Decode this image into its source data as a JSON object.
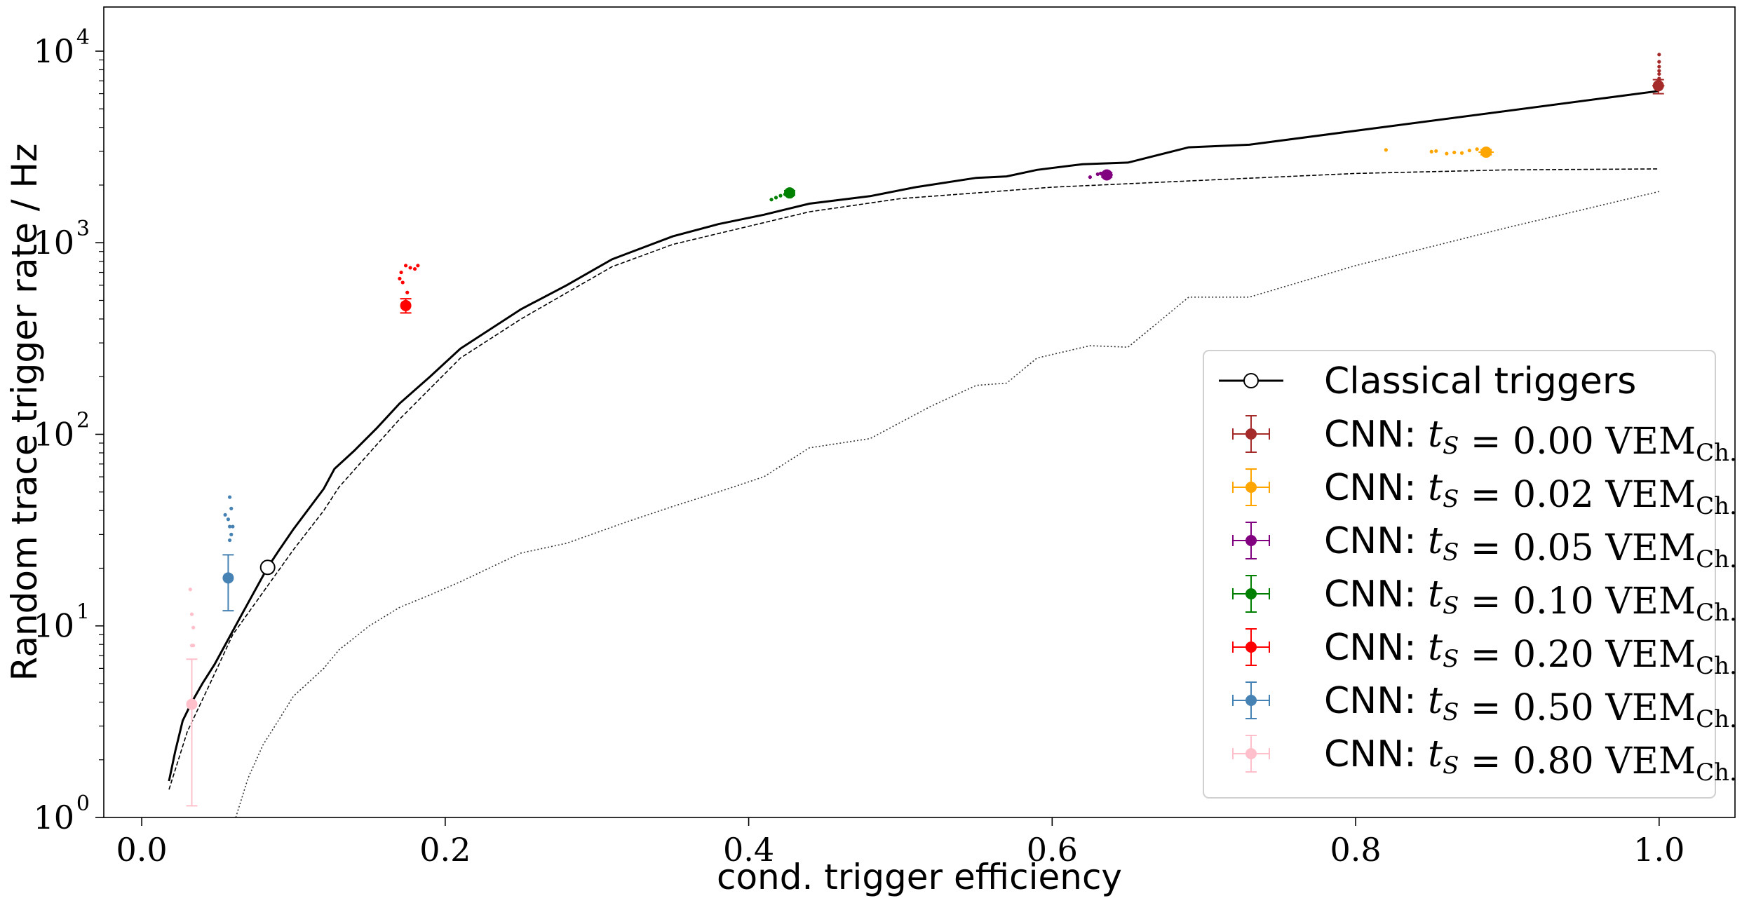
{
  "chart_data": {
    "type": "scatter",
    "xlabel": "cond. trigger efficiency",
    "ylabel": "Random trace trigger rate / Hz",
    "xlim": [
      -0.025,
      1.05
    ],
    "ylim": [
      1,
      17000
    ],
    "yscale": "log",
    "grid": false,
    "legend_position": "bottom-right",
    "x_ticks": [
      {
        "value": 0.0,
        "label": "0.0"
      },
      {
        "value": 0.2,
        "label": "0.2"
      },
      {
        "value": 0.4,
        "label": "0.4"
      },
      {
        "value": 0.6,
        "label": "0.6"
      },
      {
        "value": 0.8,
        "label": "0.8"
      },
      {
        "value": 1.0,
        "label": "1.0"
      }
    ],
    "y_ticks": [
      {
        "value": 1,
        "label": "10",
        "exp": "0"
      },
      {
        "value": 10,
        "label": "10",
        "exp": "1"
      },
      {
        "value": 100,
        "label": "10",
        "exp": "2"
      },
      {
        "value": 1000,
        "label": "10",
        "exp": "3"
      },
      {
        "value": 10000,
        "label": "10",
        "exp": "4"
      }
    ],
    "classical": {
      "name": "Classical triggers",
      "color": "#000000",
      "marker_point": {
        "x": 0.083,
        "y": 20.2
      },
      "x": [
        0.018,
        0.022,
        0.027,
        0.033,
        0.04,
        0.048,
        0.057,
        0.066,
        0.075,
        0.083,
        0.09,
        0.1,
        0.12,
        0.127,
        0.14,
        0.155,
        0.17,
        0.19,
        0.21,
        0.25,
        0.28,
        0.31,
        0.35,
        0.38,
        0.41,
        0.44,
        0.48,
        0.51,
        0.55,
        0.57,
        0.59,
        0.62,
        0.65,
        0.69,
        0.73,
        1.0
      ],
      "y": [
        1.55,
        2.2,
        3.2,
        4.0,
        5.0,
        6.3,
        8.5,
        11.5,
        15.5,
        20.2,
        24.5,
        32,
        52,
        66,
        82,
        108,
        145,
        200,
        280,
        450,
        600,
        820,
        1080,
        1250,
        1400,
        1600,
        1750,
        1950,
        2180,
        2220,
        2400,
        2570,
        2620,
        3150,
        3250,
        6200
      ],
      "dashed_x": [
        0.018,
        0.03,
        0.045,
        0.06,
        0.08,
        0.1,
        0.12,
        0.13,
        0.15,
        0.17,
        0.21,
        0.25,
        0.31,
        0.35,
        0.44,
        0.5,
        0.6,
        0.7,
        0.8,
        0.9,
        1.0
      ],
      "dashed_y": [
        1.4,
        2.8,
        5.0,
        9.0,
        15.0,
        25.0,
        40.0,
        53.0,
        80.0,
        120.0,
        250.0,
        400.0,
        750.0,
        980.0,
        1450.0,
        1700.0,
        1950.0,
        2120.0,
        2300.0,
        2400.0,
        2430.0
      ],
      "dotted_x": [
        0.062,
        0.07,
        0.08,
        0.09,
        0.1,
        0.12,
        0.13,
        0.15,
        0.17,
        0.19,
        0.21,
        0.25,
        0.28,
        0.32,
        0.35,
        0.38,
        0.41,
        0.44,
        0.48,
        0.52,
        0.55,
        0.57,
        0.59,
        0.625,
        0.65,
        0.69,
        0.73,
        0.8,
        0.9,
        1.0
      ],
      "dotted_y": [
        1.0,
        1.6,
        2.4,
        3.2,
        4.3,
        6.0,
        7.5,
        10.0,
        12.5,
        14.5,
        17.0,
        24.0,
        27.0,
        35.0,
        42.0,
        50.0,
        60.0,
        85.0,
        95.0,
        140.0,
        180.0,
        185.0,
        250.0,
        290.0,
        285.0,
        520.0,
        520.0,
        760.0,
        1200.0,
        1850.0
      ]
    },
    "series": [
      {
        "name": "CNN: t_S = 0.00 VEM_Ch.",
        "value_label": "0.00",
        "color": "#a52a2a",
        "point": {
          "x": 0.9995,
          "y": 6600
        },
        "yerr": [
          6000,
          7100
        ],
        "xerr": 0.004,
        "scatter_x": [
          1.0,
          1.0,
          1.0,
          1.0,
          1.0,
          1.0,
          1.0,
          1.0,
          1.0
        ],
        "scatter_y": [
          9600,
          8800,
          8300,
          7900,
          7600,
          7200,
          7000,
          6800,
          6700
        ]
      },
      {
        "name": "CNN: t_S = 0.02 VEM_Ch.",
        "value_label": "0.02",
        "color": "#ffa500",
        "point": {
          "x": 0.886,
          "y": 2970
        },
        "yerr": [
          2880,
          3060
        ],
        "xerr": 0.005,
        "scatter_x": [
          0.82,
          0.85,
          0.853,
          0.86,
          0.865,
          0.87,
          0.875,
          0.88
        ],
        "scatter_y": [
          3050,
          2990,
          3010,
          2920,
          2960,
          2940,
          3030,
          3080
        ]
      },
      {
        "name": "CNN: t_S = 0.05 VEM_Ch.",
        "value_label": "0.05",
        "color": "#800080",
        "point": {
          "x": 0.636,
          "y": 2260
        },
        "yerr": [
          2200,
          2320
        ],
        "xerr": 0.004,
        "scatter_x": [
          0.625,
          0.63,
          0.632,
          0.634
        ],
        "scatter_y": [
          2200,
          2280,
          2300,
          2240
        ]
      },
      {
        "name": "CNN: t_S = 0.10 VEM_Ch.",
        "value_label": "0.10",
        "color": "#008000",
        "point": {
          "x": 0.427,
          "y": 1820
        },
        "yerr": [
          1770,
          1870
        ],
        "xerr": 0.003,
        "scatter_x": [
          0.415,
          0.418,
          0.421,
          0.424
        ],
        "scatter_y": [
          1680,
          1720,
          1760,
          1790
        ]
      },
      {
        "name": "CNN: t_S = 0.20 VEM_Ch.",
        "value_label": "0.20",
        "color": "#ff0000",
        "point": {
          "x": 0.174,
          "y": 470
        },
        "yerr": [
          430,
          510
        ],
        "xerr": 0.003,
        "scatter_x": [
          0.17,
          0.171,
          0.172,
          0.174,
          0.175,
          0.177,
          0.18,
          0.182
        ],
        "scatter_y": [
          650,
          700,
          620,
          760,
          550,
          740,
          730,
          760
        ]
      },
      {
        "name": "CNN: t_S = 0.50 VEM_Ch.",
        "value_label": "0.50",
        "color": "#4682b4",
        "point": {
          "x": 0.057,
          "y": 17.8
        },
        "yerr": [
          12.0,
          23.5
        ],
        "xerr": 0.001,
        "scatter_x": [
          0.055,
          0.057,
          0.058,
          0.059,
          0.058,
          0.059,
          0.06,
          0.058
        ],
        "scatter_y": [
          38,
          36,
          33,
          41,
          47,
          30,
          33,
          28
        ]
      },
      {
        "name": "CNN: t_S = 0.80 VEM_Ch.",
        "value_label": "0.80",
        "color": "#ffc0cb",
        "point": {
          "x": 0.033,
          "y": 3.9
        },
        "yerr": [
          1.15,
          6.7
        ],
        "xerr": 0.001,
        "scatter_x": [
          0.032,
          0.033,
          0.034,
          0.033,
          0.034
        ],
        "scatter_y": [
          15.5,
          11.5,
          9.8,
          7.9,
          7.9
        ]
      }
    ]
  }
}
